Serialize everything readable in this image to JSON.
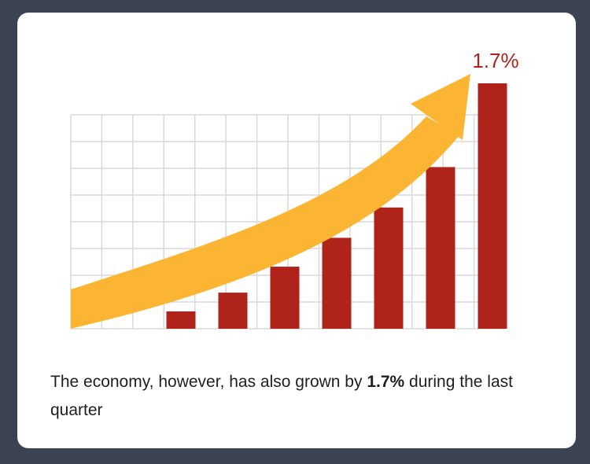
{
  "chart_data": {
    "type": "bar",
    "title": "",
    "xlabel": "",
    "ylabel": "",
    "values": [
      0.12,
      0.25,
      0.43,
      0.63,
      0.84,
      1.12,
      1.7
    ],
    "ylim": [
      0,
      1.7
    ],
    "grid": true,
    "trend_arrow": true,
    "annotation": "1.7%",
    "colors": {
      "bar": "#b0231a",
      "arrow": "#fbb532",
      "grid": "#d9d9d9",
      "annotation": "#b0231a"
    }
  },
  "caption": {
    "before": "The economy, however, has also grown by ",
    "highlight": "1.7%",
    "after": " during the last quarter"
  }
}
